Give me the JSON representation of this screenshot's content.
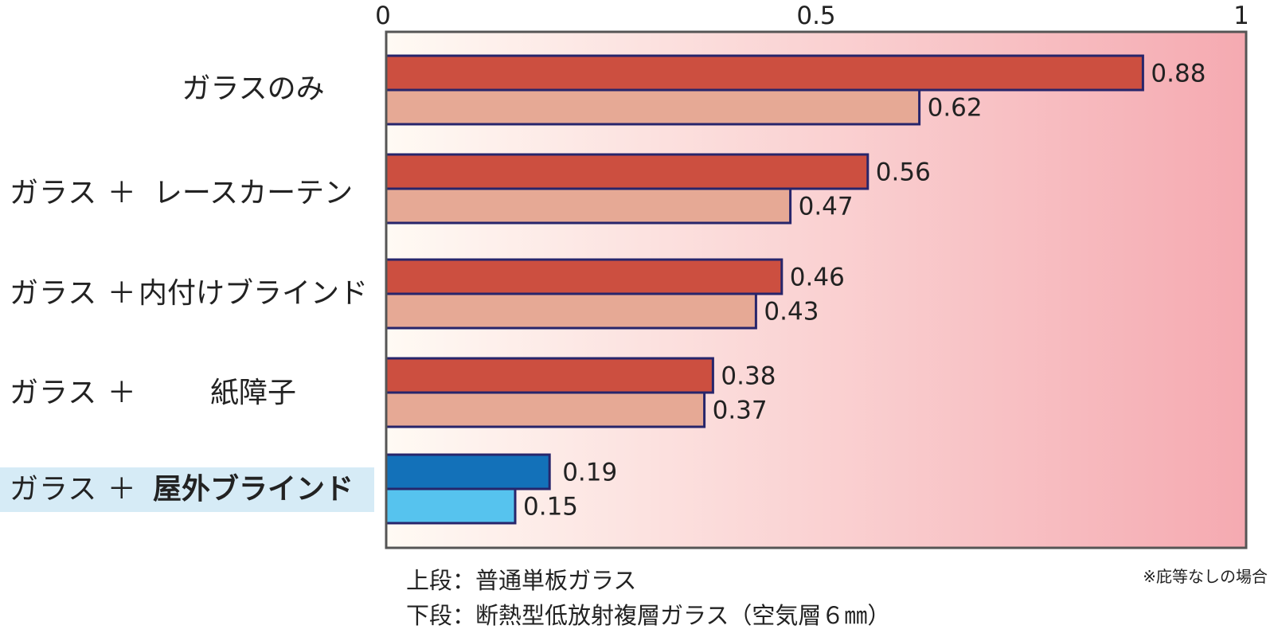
{
  "chart_data": {
    "type": "bar",
    "orientation": "horizontal",
    "categories": [
      {
        "prefix": "",
        "name": "ガラスのみ"
      },
      {
        "prefix": "ガラス ＋",
        "name": "レースカーテン"
      },
      {
        "prefix": "ガラス ＋",
        "name": "内付けブラインド"
      },
      {
        "prefix": "ガラス ＋",
        "name": "紙障子"
      },
      {
        "prefix": "ガラス ＋",
        "name": "屋外ブラインド",
        "highlight": true
      }
    ],
    "series": [
      {
        "name": "上段：普通単板ガラス",
        "values": [
          0.88,
          0.56,
          0.46,
          0.38,
          0.19
        ]
      },
      {
        "name": "下段：断熱型低放射複層ガラス（空気層６㎜）",
        "values": [
          0.62,
          0.47,
          0.43,
          0.37,
          0.15
        ]
      }
    ],
    "value_labels": [
      [
        "0.88",
        "0.56",
        "0.46",
        "0.38",
        "0.19"
      ],
      [
        "0.62",
        "0.47",
        "0.43",
        "0.37",
        "0.15"
      ]
    ],
    "xlim": [
      0,
      1
    ],
    "xticks": [
      "0",
      "0.5",
      "1"
    ],
    "legend_placement": "bottom-left",
    "grid": false
  },
  "legend": {
    "line1": "上段：普通単板ガラス",
    "line2": "下段：断熱型低放射複層ガラス（空気層６㎜）"
  },
  "note": "※庇等なしの場合",
  "colors": {
    "top_bar": "#cc4f40",
    "bottom_bar": "#e6a995",
    "top_bar_highlight": "#1371b9",
    "bottom_bar_highlight": "#56c3ee",
    "bar_border": "#27256b",
    "plot_border": "#555555",
    "gradient_start": "#fffaf4",
    "gradient_end": "#f5aab1",
    "label_highlight": "#d6ebf6"
  }
}
